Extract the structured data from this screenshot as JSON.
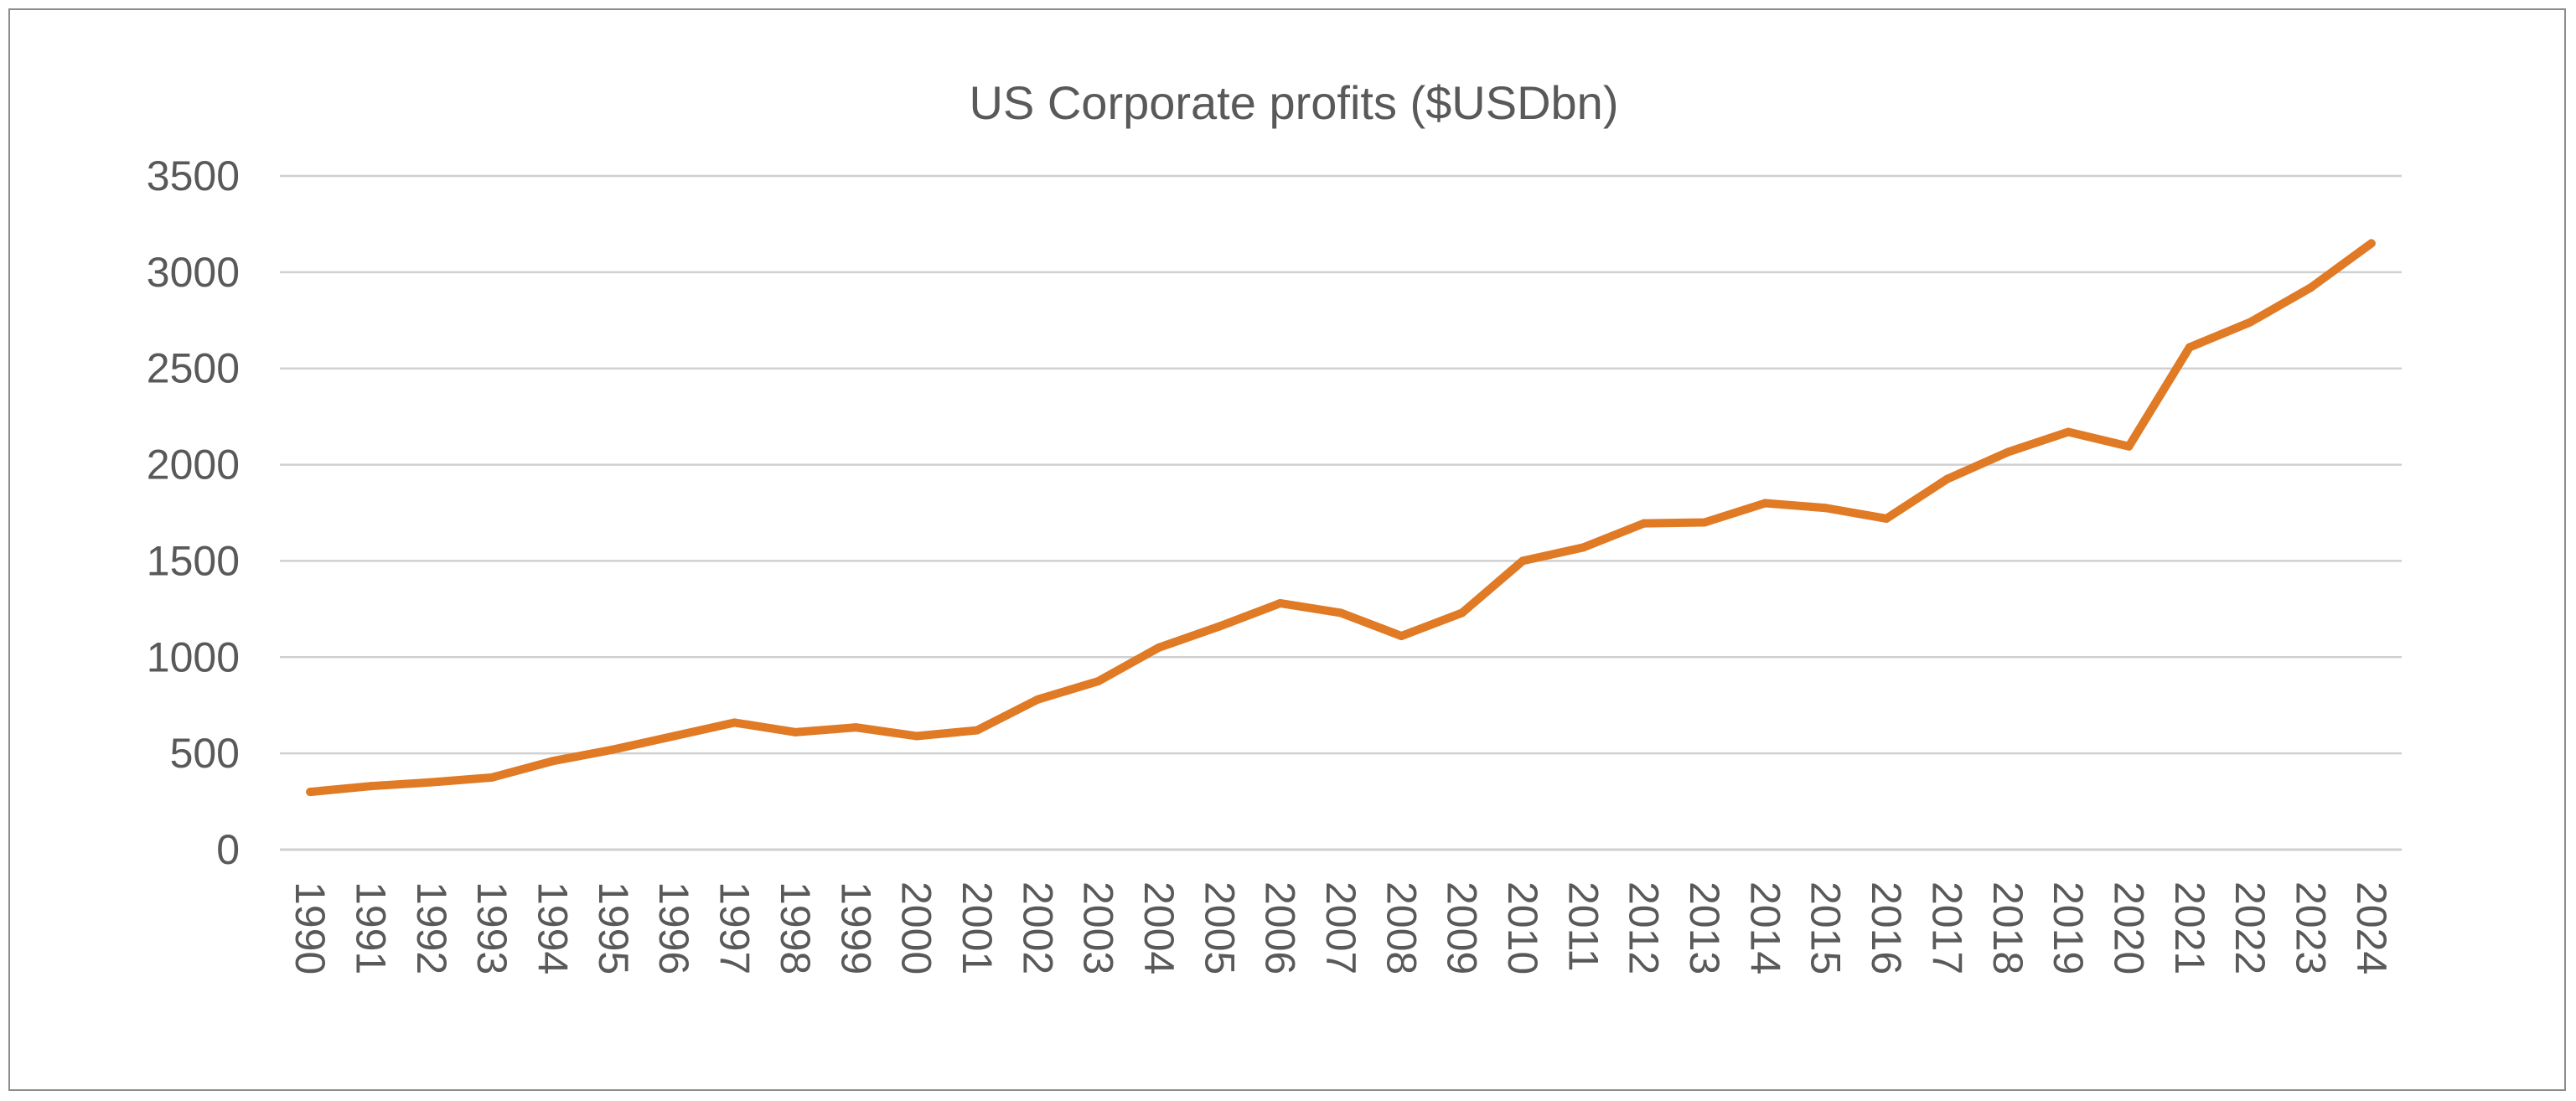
{
  "chart_data": {
    "type": "line",
    "title": "US Corporate profits ($USDbn)",
    "xlabel": "",
    "ylabel": "",
    "ylim": [
      0,
      3500
    ],
    "yticks": [
      0,
      500,
      1000,
      1500,
      2000,
      2500,
      3000,
      3500
    ],
    "grid": true,
    "legend": "none",
    "categories": [
      "1990",
      "1991",
      "1992",
      "1993",
      "1994",
      "1995",
      "1996",
      "1997",
      "1998",
      "1999",
      "2000",
      "2001",
      "2002",
      "2003",
      "2004",
      "2005",
      "2006",
      "2007",
      "2008",
      "2009",
      "2010",
      "2011",
      "2012",
      "2013",
      "2014",
      "2015",
      "2016",
      "2017",
      "2018",
      "2019",
      "2020",
      "2021",
      "2022",
      "2023",
      "2024"
    ],
    "series": [
      {
        "color": "#E07A24",
        "values": [
          300,
          330,
          350,
          375,
          460,
          520,
          590,
          660,
          610,
          635,
          590,
          620,
          780,
          875,
          1050,
          1160,
          1280,
          1230,
          1110,
          1230,
          1500,
          1570,
          1695,
          1700,
          1800,
          1775,
          1720,
          1925,
          2065,
          2170,
          2095,
          2610,
          2740,
          2920,
          3150
        ]
      }
    ]
  }
}
